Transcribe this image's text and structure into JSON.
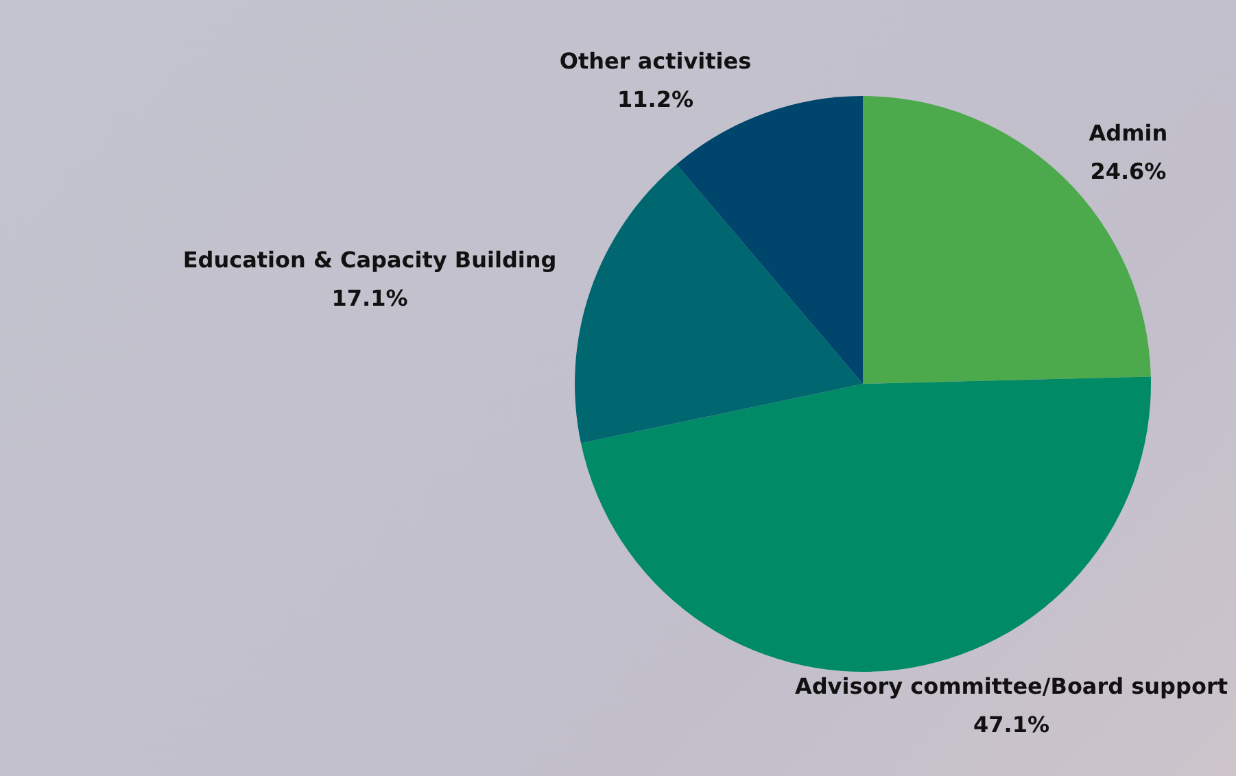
{
  "chart_data": {
    "type": "pie",
    "categories": [
      "Admin",
      "Advisory committee/Board support",
      "Education & Capacity Building",
      "Other activities"
    ],
    "values": [
      24.6,
      47.1,
      17.1,
      11.2
    ],
    "colors": [
      "#4caa4c",
      "#008a66",
      "#006670",
      "#00456b"
    ],
    "value_labels": [
      "24.6%",
      "47.1%",
      "17.1%",
      "11.2%"
    ],
    "legend": false
  }
}
